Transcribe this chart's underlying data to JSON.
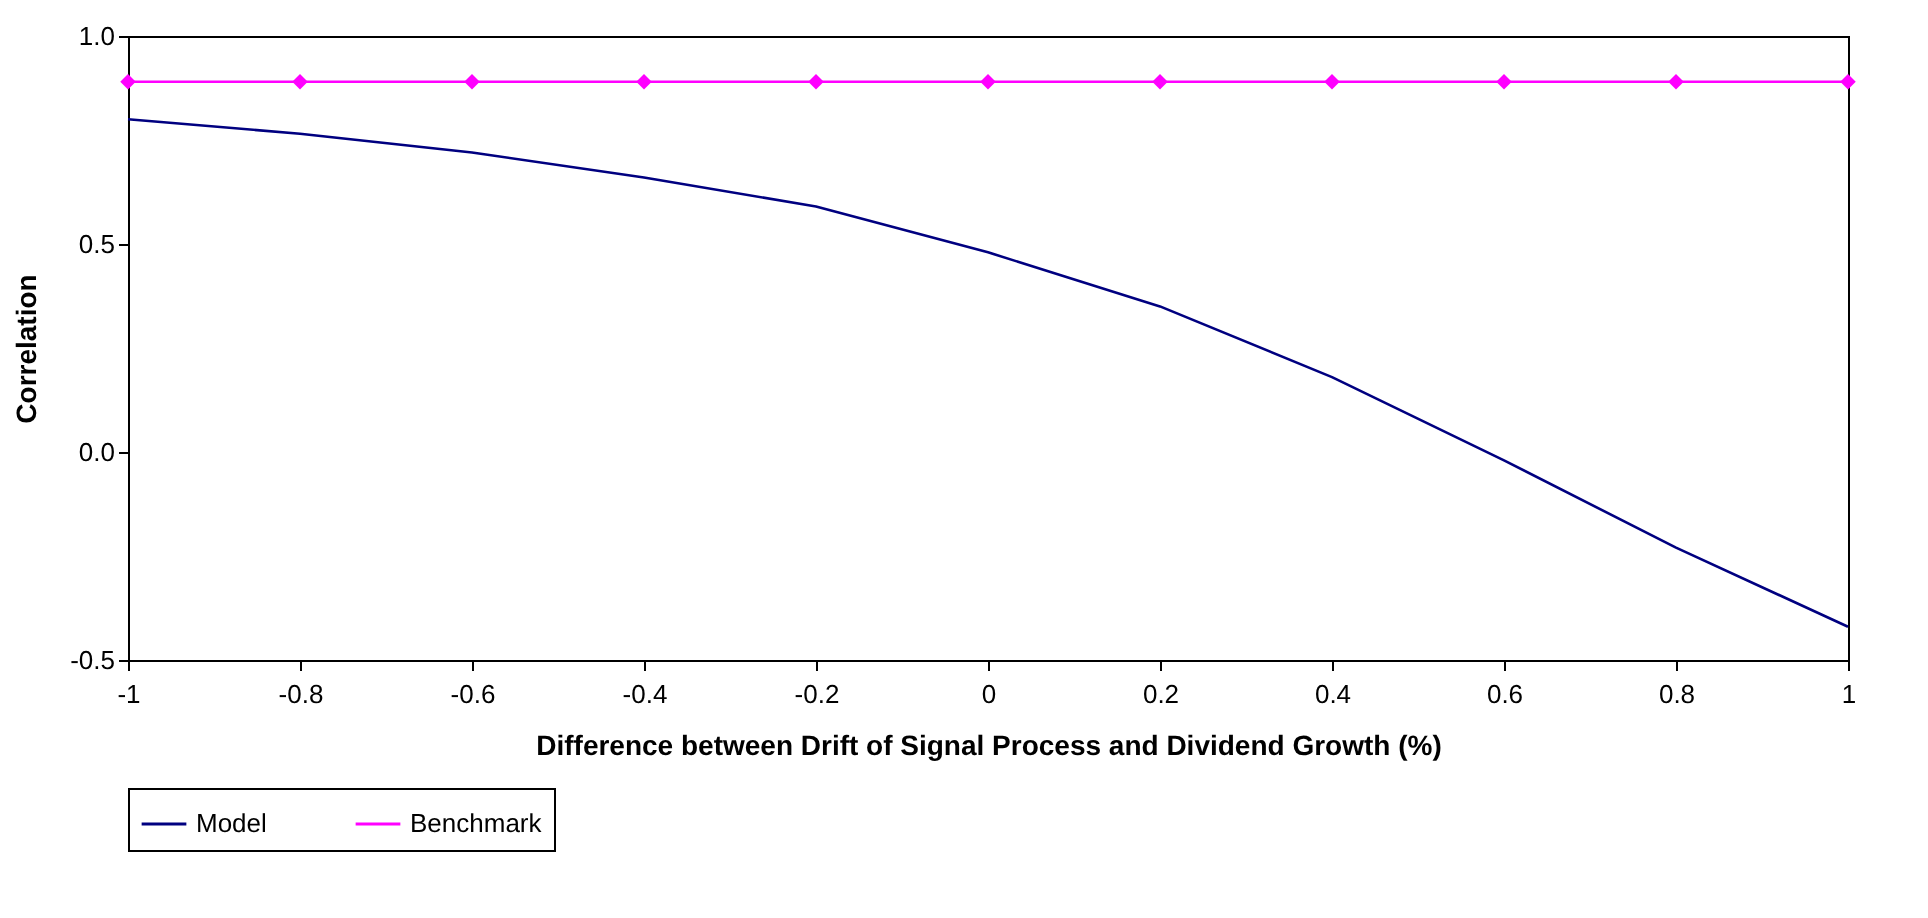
{
  "chart_data": {
    "type": "line",
    "xlabel": "Difference between Drift of Signal Process and Dividend Growth (%)",
    "ylabel": "Correlation",
    "x": [
      -1,
      -0.8,
      -0.6,
      -0.4,
      -0.2,
      0,
      0.2,
      0.4,
      0.6,
      0.8,
      1
    ],
    "series": [
      {
        "name": "Model",
        "color": "#000080",
        "marker": "none",
        "values": [
          0.8,
          0.765,
          0.72,
          0.66,
          0.59,
          0.48,
          0.35,
          0.18,
          -0.02,
          -0.23,
          -0.42
        ]
      },
      {
        "name": "Benchmark",
        "color": "#ff00ff",
        "marker": "diamond",
        "values": [
          0.89,
          0.89,
          0.89,
          0.89,
          0.89,
          0.89,
          0.89,
          0.89,
          0.89,
          0.89,
          0.89
        ]
      }
    ],
    "xlim": [
      -1,
      1
    ],
    "xticks": [
      -1,
      -0.8,
      -0.6,
      -0.4,
      -0.2,
      0,
      0.2,
      0.4,
      0.6,
      0.8,
      1
    ],
    "ylim": [
      -0.5,
      1
    ],
    "yticks": [
      {
        "value": -0.5,
        "label": "-0.5"
      },
      {
        "value": 0,
        "label": "0.0"
      },
      {
        "value": 0.5,
        "label": "0.5"
      },
      {
        "value": 1,
        "label": "1.0"
      }
    ],
    "grid": false,
    "legend": "bottom"
  }
}
